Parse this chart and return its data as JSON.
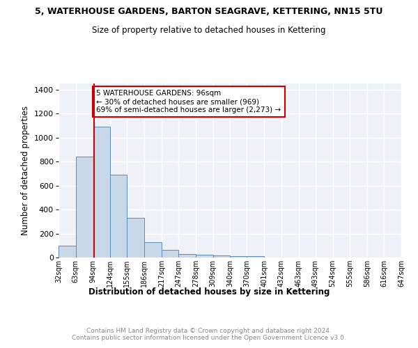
{
  "title": "5, WATERHOUSE GARDENS, BARTON SEAGRAVE, KETTERING, NN15 5TU",
  "subtitle": "Size of property relative to detached houses in Kettering",
  "xlabel": "Distribution of detached houses by size in Kettering",
  "ylabel": "Number of detached properties",
  "bar_color": "#c8d8e8",
  "bar_edge_color": "#5b8db8",
  "background_color": "#eef2f8",
  "grid_color": "#ffffff",
  "annotation_text": "5 WATERHOUSE GARDENS: 96sqm\n← 30% of detached houses are smaller (969)\n69% of semi-detached houses are larger (2,273) →",
  "vline_x": 96,
  "vline_color": "#cc0000",
  "bins": [
    32,
    63,
    94,
    124,
    155,
    186,
    217,
    247,
    278,
    309,
    340,
    370,
    401,
    432,
    463,
    493,
    524,
    555,
    586,
    616,
    647
  ],
  "bin_labels": [
    "32sqm",
    "63sqm",
    "94sqm",
    "124sqm",
    "155sqm",
    "186sqm",
    "217sqm",
    "247sqm",
    "278sqm",
    "309sqm",
    "340sqm",
    "370sqm",
    "401sqm",
    "432sqm",
    "463sqm",
    "493sqm",
    "524sqm",
    "555sqm",
    "586sqm",
    "616sqm",
    "647sqm"
  ],
  "counts": [
    97,
    840,
    1093,
    690,
    328,
    127,
    62,
    30,
    22,
    15,
    13,
    13,
    0,
    0,
    0,
    0,
    0,
    0,
    0,
    0
  ],
  "ylim": [
    0,
    1450
  ],
  "yticks": [
    0,
    200,
    400,
    600,
    800,
    1000,
    1200,
    1400
  ],
  "footer": "Contains HM Land Registry data © Crown copyright and database right 2024.\nContains public sector information licensed under the Open Government Licence v3.0."
}
